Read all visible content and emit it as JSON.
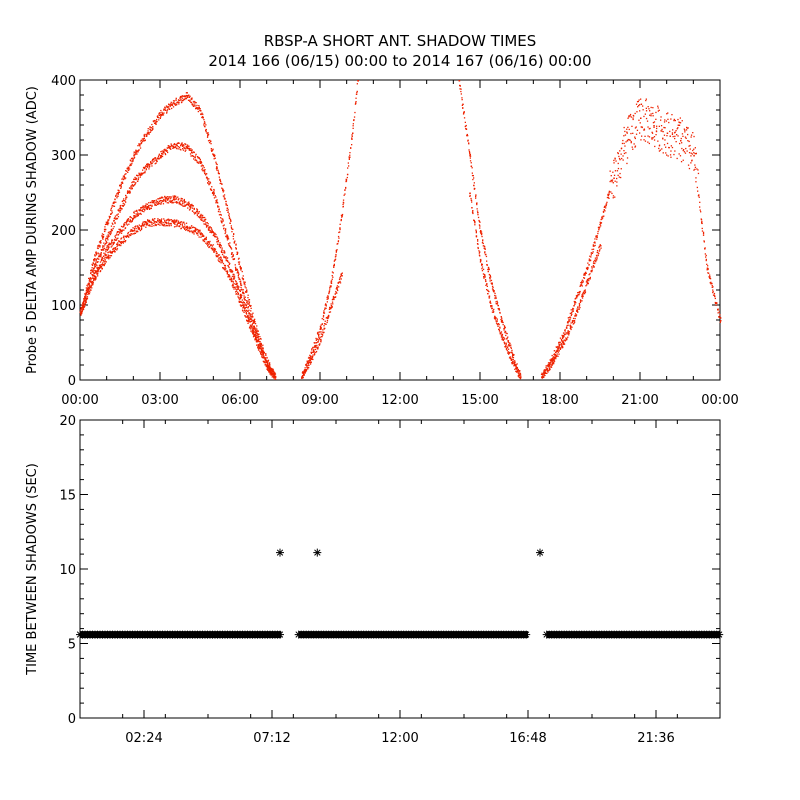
{
  "title_line1": "RBSP-A SHORT ANT. SHADOW TIMES",
  "title_line2": "2014 166 (06/15) 00:00 to 2014 167 (06/16) 00:00",
  "colors": {
    "points": "#ee2200",
    "stars": "#000000",
    "axis": "#000000"
  },
  "chart_data": [
    {
      "type": "scatter",
      "name": "top-panel",
      "title": "",
      "xlabel": "",
      "ylabel": "Probe 5 DELTA AMP DURING SHADOW (ADC)",
      "x_unit": "hours",
      "xlim": [
        0,
        24
      ],
      "ylim": [
        0,
        400
      ],
      "x_ticks": [
        0,
        3,
        6,
        9,
        12,
        15,
        18,
        21,
        24
      ],
      "x_tick_labels": [
        "00:00",
        "03:00",
        "06:00",
        "09:00",
        "12:00",
        "15:00",
        "18:00",
        "21:00",
        "00:00"
      ],
      "y_ticks": [
        0,
        100,
        200,
        300,
        400
      ],
      "y_tick_labels": [
        "0",
        "100",
        "200",
        "300",
        "400"
      ],
      "series": [
        {
          "name": "branch-1",
          "x": [
            0,
            0.5,
            1,
            1.5,
            2,
            2.5,
            3,
            3.5,
            4,
            4.5,
            5,
            5.5,
            6,
            6.5,
            7,
            7.3
          ],
          "y": [
            90,
            160,
            210,
            260,
            300,
            330,
            355,
            370,
            380,
            360,
            300,
            230,
            150,
            80,
            25,
            5
          ]
        },
        {
          "name": "branch-2",
          "x": [
            0,
            0.5,
            1,
            1.5,
            2,
            2.5,
            3,
            3.5,
            4,
            4.5,
            5,
            5.5,
            6,
            6.5,
            7,
            7.3
          ],
          "y": [
            90,
            150,
            190,
            230,
            265,
            285,
            300,
            315,
            310,
            290,
            250,
            190,
            130,
            70,
            20,
            5
          ]
        },
        {
          "name": "branch-3",
          "x": [
            0,
            0.5,
            1,
            1.5,
            2,
            2.5,
            3,
            3.5,
            4,
            4.5,
            5,
            5.5,
            6,
            6.5,
            7,
            7.3
          ],
          "y": [
            90,
            140,
            175,
            200,
            220,
            232,
            240,
            242,
            235,
            220,
            195,
            160,
            115,
            65,
            20,
            5
          ]
        },
        {
          "name": "branch-4",
          "x": [
            0,
            0.5,
            1,
            1.5,
            2,
            2.5,
            3,
            3.5,
            4,
            4.5,
            5,
            5.5,
            6,
            6.5,
            7,
            7.3
          ],
          "y": [
            90,
            135,
            165,
            185,
            200,
            210,
            212,
            210,
            205,
            195,
            175,
            145,
            105,
            60,
            18,
            5
          ]
        },
        {
          "name": "branch-5",
          "x": [
            8.3,
            8.6,
            9,
            9.4,
            9.8,
            10.2,
            10.4
          ],
          "y": [
            5,
            30,
            70,
            130,
            220,
            330,
            400
          ]
        },
        {
          "name": "branch-6",
          "x": [
            8.3,
            8.6,
            9,
            9.4,
            9.8
          ],
          "y": [
            5,
            25,
            55,
            100,
            140
          ]
        },
        {
          "name": "branch-7",
          "x": [
            14.2,
            14.6,
            15,
            15.4,
            15.8,
            16.2,
            16.5
          ],
          "y": [
            400,
            300,
            200,
            130,
            80,
            35,
            5
          ]
        },
        {
          "name": "branch-8",
          "x": [
            14.6,
            15,
            15.4,
            15.8,
            16.2,
            16.5
          ],
          "y": [
            250,
            160,
            100,
            60,
            25,
            5
          ]
        },
        {
          "name": "branch-9",
          "x": [
            17.3,
            17.7,
            18.1,
            18.5,
            19,
            19.5,
            20,
            20.5,
            21,
            21.5,
            22,
            22.5,
            23,
            23.5,
            24
          ],
          "y": [
            5,
            30,
            60,
            100,
            150,
            210,
            270,
            320,
            350,
            340,
            330,
            320,
            300,
            150,
            80
          ]
        },
        {
          "name": "branch-10",
          "x": [
            17.3,
            17.7,
            18.1,
            18.5,
            19,
            19.5
          ],
          "y": [
            5,
            25,
            50,
            80,
            130,
            180
          ]
        }
      ]
    },
    {
      "type": "scatter",
      "name": "bottom-panel",
      "title": "",
      "xlabel": "",
      "ylabel": "TIME BETWEEN SHADOWS (SEC)",
      "x_unit": "hours",
      "xlim": [
        0,
        24
      ],
      "ylim": [
        0,
        20
      ],
      "x_ticks": [
        2.4,
        7.2,
        12,
        16.8,
        21.6
      ],
      "x_tick_labels": [
        "02:24",
        "07:12",
        "12:00",
        "16:48",
        "21:36"
      ],
      "y_ticks": [
        0,
        5,
        10,
        15,
        20
      ],
      "y_tick_labels": [
        "0",
        "5",
        "10",
        "15",
        "20"
      ],
      "baseline_value": 5.6,
      "baseline_segments": [
        [
          0,
          7.55
        ],
        [
          8.2,
          16.8
        ],
        [
          17.5,
          24
        ]
      ],
      "outliers": [
        {
          "x": 7.5,
          "y": 11.1
        },
        {
          "x": 8.9,
          "y": 11.1
        },
        {
          "x": 17.25,
          "y": 11.1
        }
      ]
    }
  ]
}
